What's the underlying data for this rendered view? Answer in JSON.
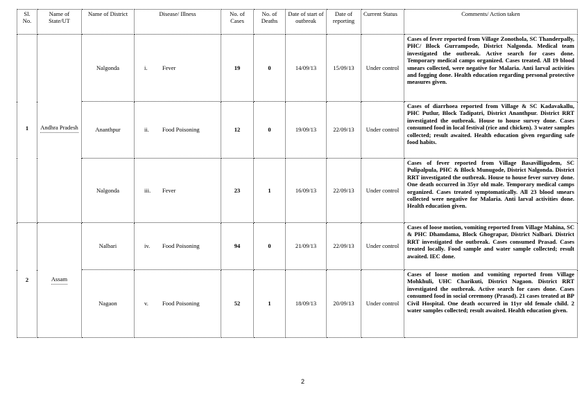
{
  "headers": {
    "sl": "Sl. No.",
    "state": "Name of State/UT",
    "district": "Name of District",
    "disease": "Disease/ Illness",
    "cases": "No. of Cases",
    "deaths": "No. of Deaths",
    "start": "Date of start of outbreak",
    "report": "Date of reporting",
    "status": "Current Status",
    "comments": "Comments/ Action taken"
  },
  "groups": [
    {
      "sl": "1",
      "state": "Andhra Pradesh"
    },
    {
      "sl": "2",
      "state": "Assam"
    }
  ],
  "rows": [
    {
      "district": "Nalgonda",
      "num": "i.",
      "disease": "Fever",
      "cases": "19",
      "deaths": "0",
      "start": "14/09/13",
      "report": "15/09/13",
      "status": "Under control",
      "comments": "Cases of fever reported from Village Zonothola, SC Thanderpally, PHC/ Block Gurrampode, District Nalgonda. Medical team investigated the outbreak. Active search for cases done. Temporary medical camps organized. Cases treated. All 19 blood smears collected, were negative for Malaria. Anti larval activities and fogging done. Health education regarding personal protective measures given."
    },
    {
      "district": "Ananthpur",
      "num": "ii.",
      "disease": "Food Poisoning",
      "cases": "12",
      "deaths": "0",
      "start": "19/09/13",
      "report": "22/09/13",
      "status": "Under control",
      "comments": "Cases of diarrhoea reported from Village & SC Kadavakallu, PHC Putlur, Block Tadipatri, District Ananthpur. District RRT investigated the outbreak. House to house survey done. Cases consumed food in local festival (rice and chicken). 3 water samples collected; result awaited. Health education given regarding safe food habits."
    },
    {
      "district": "Nalgonda",
      "num": "iii.",
      "disease": "Fever",
      "cases": "23",
      "deaths": "1",
      "start": "16/09/13",
      "report": "22/09/13",
      "status": "Under control",
      "comments": "Cases of fever reported from Village Basavilligudem, SC Pulipalpula, PHC & Block Munugode, District Nalgonda. District RRT investigated the outbreak. House to house fever survey done. One death occurred in 35yr old male. Temporary medical camps organized. Cases treated symptomatically. All 23 blood smears collected were negative for Malaria. Anti larval activities done. Health education given."
    },
    {
      "district": "Nalbari",
      "num": "iv.",
      "disease": "Food Poisoning",
      "cases": "94",
      "deaths": "0",
      "start": "21/09/13",
      "report": "22/09/13",
      "status": "Under control",
      "comments": "Cases of loose motion, vomiting reported from Village Mahina, SC & PHC Dhamdama, Block Ghograpar, District Nalbari. District RRT investigated the outbreak. Cases consumed Prasad. Cases treated locally. Food sample and water sample collected; result awaited. IEC done."
    },
    {
      "district": "Nagaon",
      "num": "v.",
      "disease": "Food Poisoning",
      "cases": "52",
      "deaths": "1",
      "start": "18/09/13",
      "report": "20/09/13",
      "status": "Under control",
      "comments": "Cases of loose motion and vomiting reported from Village Mohkhuli, UHC Charikuti, District Nagaon. District RRT investigated the outbreak. Active search for cases done. Cases consumed food in social ceremony (Prasad). 21 cases treated at BP Civil Hospital. One death occurred in 11yr old female child. 2 water samples collected; result awaited. Health education given."
    }
  ],
  "page_number": "2"
}
